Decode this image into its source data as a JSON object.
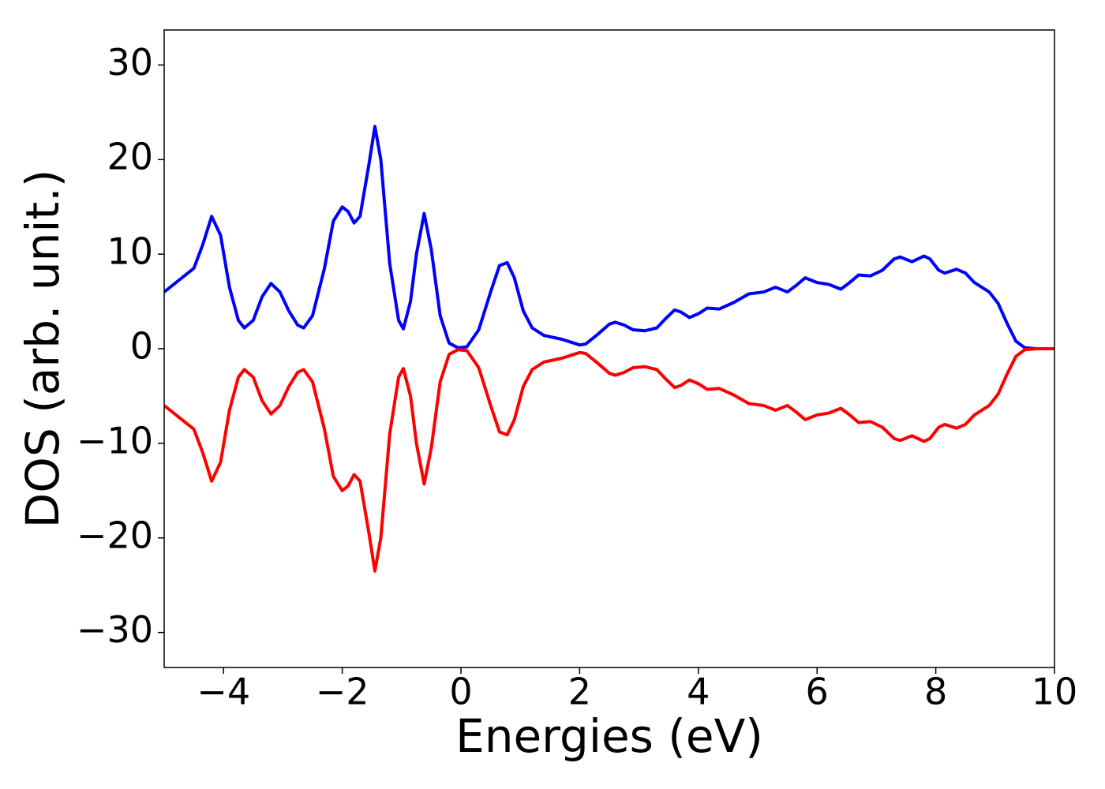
{
  "chart_data": {
    "type": "line",
    "x_label": "Energies (eV)",
    "y_label": "DOS (arb. unit.)",
    "x": [
      -5,
      -4.7,
      -4.5,
      -4.35,
      -4.2,
      -4.05,
      -3.9,
      -3.75,
      -3.65,
      -3.5,
      -3.35,
      -3.2,
      -3.05,
      -2.9,
      -2.75,
      -2.65,
      -2.5,
      -2.3,
      -2.15,
      -2.0,
      -1.9,
      -1.8,
      -1.7,
      -1.55,
      -1.45,
      -1.35,
      -1.2,
      -1.05,
      -0.97,
      -0.85,
      -0.75,
      -0.62,
      -0.5,
      -0.35,
      -0.2,
      -0.05,
      0.1,
      0.3,
      0.5,
      0.65,
      0.78,
      0.9,
      1.05,
      1.2,
      1.4,
      1.7,
      1.9,
      2.0,
      2.1,
      2.3,
      2.5,
      2.6,
      2.75,
      2.9,
      3.1,
      3.3,
      3.45,
      3.6,
      3.7,
      3.85,
      4.0,
      4.15,
      4.35,
      4.6,
      4.85,
      5.1,
      5.3,
      5.5,
      5.65,
      5.8,
      6.0,
      6.2,
      6.4,
      6.55,
      6.7,
      6.9,
      7.1,
      7.3,
      7.4,
      7.6,
      7.8,
      7.9,
      8.05,
      8.15,
      8.35,
      8.5,
      8.65,
      8.9,
      9.05,
      9.2,
      9.35,
      9.5,
      9.7,
      10
    ],
    "series": [
      {
        "color": "#0000ff",
        "values": [
          6,
          7.5,
          8.5,
          11,
          14,
          12,
          6.5,
          3,
          2.2,
          3,
          5.5,
          6.9,
          6,
          4,
          2.5,
          2.2,
          3.5,
          8.5,
          13.5,
          15,
          14.5,
          13.3,
          14,
          19.5,
          23.5,
          20,
          9,
          3,
          2.1,
          5,
          10,
          14.3,
          10.5,
          3.5,
          0.6,
          0.1,
          0.2,
          2,
          6,
          8.8,
          9.1,
          7.5,
          4,
          2.2,
          1.4,
          1,
          0.6,
          0.4,
          0.5,
          1.5,
          2.6,
          2.8,
          2.5,
          2,
          1.9,
          2.2,
          3.2,
          4.1,
          3.9,
          3.3,
          3.7,
          4.3,
          4.2,
          4.9,
          5.8,
          6,
          6.5,
          6,
          6.7,
          7.5,
          7,
          6.8,
          6.3,
          7,
          7.8,
          7.7,
          8.3,
          9.5,
          9.7,
          9.2,
          9.8,
          9.5,
          8.3,
          8,
          8.4,
          8,
          7,
          6,
          4.8,
          2.7,
          0.8,
          0.1,
          0,
          0
        ]
      },
      {
        "color": "#ff0000",
        "values": [
          -6,
          -7.5,
          -8.5,
          -11,
          -14,
          -12,
          -6.5,
          -3,
          -2.2,
          -3,
          -5.5,
          -6.9,
          -6,
          -4,
          -2.5,
          -2.2,
          -3.5,
          -8.5,
          -13.5,
          -15,
          -14.5,
          -13.3,
          -14,
          -19.5,
          -23.5,
          -20,
          -9,
          -3,
          -2.1,
          -5,
          -10,
          -14.3,
          -10.5,
          -3.5,
          -0.6,
          -0.1,
          -0.2,
          -2,
          -6,
          -8.8,
          -9.1,
          -7.5,
          -4,
          -2.2,
          -1.4,
          -1,
          -0.6,
          -0.4,
          -0.5,
          -1.5,
          -2.6,
          -2.8,
          -2.5,
          -2,
          -1.9,
          -2.2,
          -3.2,
          -4.1,
          -3.9,
          -3.3,
          -3.7,
          -4.3,
          -4.2,
          -4.9,
          -5.8,
          -6,
          -6.5,
          -6,
          -6.7,
          -7.5,
          -7,
          -6.8,
          -6.3,
          -7,
          -7.8,
          -7.7,
          -8.3,
          -9.5,
          -9.7,
          -9.2,
          -9.8,
          -9.5,
          -8.3,
          -8,
          -8.4,
          -8,
          -7,
          -6,
          -4.8,
          -2.7,
          -0.8,
          -0.1,
          0,
          0
        ]
      }
    ],
    "xlim": [
      -5,
      10
    ],
    "ylim": [
      -33.7,
      33.7
    ],
    "xticks": [
      {
        "value": -4,
        "label": "−4"
      },
      {
        "value": -2,
        "label": "−2"
      },
      0,
      2,
      4,
      6,
      8,
      10
    ],
    "yticks": [
      {
        "value": -30,
        "label": "−30"
      },
      {
        "value": -20,
        "label": "−20"
      },
      {
        "value": -10,
        "label": "−10"
      },
      0,
      10,
      20,
      30
    ]
  }
}
